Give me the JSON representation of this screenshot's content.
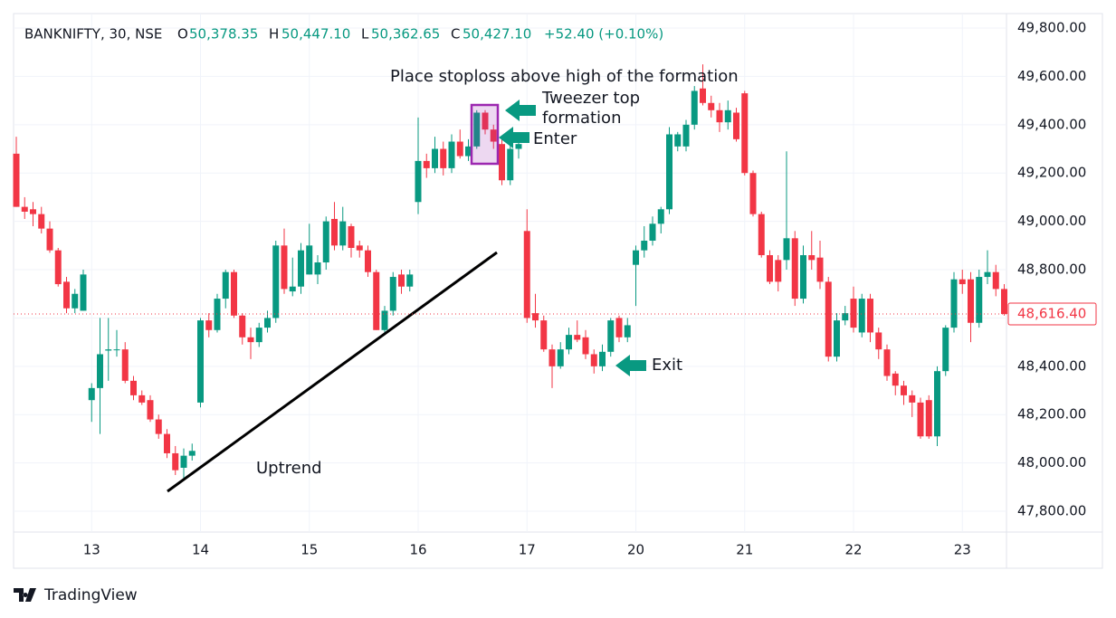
{
  "chart_data": {
    "type": "candlestick",
    "header": {
      "symbol": "BANKNIFTY, 30, NSE",
      "o_label": "O",
      "open": "50,378.35",
      "h_label": "H",
      "high": "50,447.10",
      "l_label": "L",
      "low": "50,362.65",
      "c_label": "C",
      "close": "50,427.10",
      "change": "+52.40 (+0.10%)"
    },
    "annotations": {
      "stoploss": "Place stoploss above high of the formation",
      "tweezer_1": "Tweezer top",
      "tweezer_2": "formation",
      "enter": "Enter",
      "exit": "Exit",
      "uptrend": "Uptrend"
    },
    "brand": "TradingView",
    "up_color": "#089981",
    "down_color": "#f23645",
    "categories": [
      null,
      null,
      null,
      null,
      null,
      null,
      null,
      null,
      null,
      "13",
      null,
      null,
      null,
      null,
      null,
      null,
      null,
      null,
      null,
      null,
      null,
      null,
      "14",
      null,
      null,
      null,
      null,
      null,
      null,
      null,
      null,
      null,
      null,
      null,
      null,
      "15",
      null,
      null,
      null,
      null,
      null,
      null,
      null,
      null,
      null,
      null,
      null,
      null,
      "16",
      null,
      null,
      null,
      null,
      null,
      null,
      null,
      null,
      null,
      null,
      null,
      null,
      "17",
      null,
      null,
      null,
      null,
      null,
      null,
      null,
      null,
      null,
      null,
      null,
      null,
      "20",
      null,
      null,
      null,
      null,
      null,
      null,
      null,
      null,
      null,
      null,
      null,
      null,
      "21",
      null,
      null,
      null,
      null,
      null,
      null,
      null,
      null,
      null,
      null,
      null,
      null,
      "22",
      null,
      null,
      null,
      null,
      null,
      null,
      null,
      null,
      null,
      null,
      null,
      null,
      "23",
      null,
      null,
      null,
      null,
      null
    ],
    "open": [
      49280,
      49060,
      49050,
      49030,
      48970,
      48880,
      48750,
      48640,
      48630,
      48260,
      48310,
      48465,
      48470,
      48470,
      48340,
      48280,
      48260,
      48180,
      48120,
      48040,
      47980,
      48030,
      48250,
      48590,
      48550,
      48680,
      48790,
      48610,
      48520,
      48500,
      48560,
      48600,
      48900,
      48710,
      48730,
      48780,
      48780,
      48830,
      49010,
      48900,
      48980,
      48900,
      48880,
      48790,
      48550,
      48630,
      48780,
      48730,
      49080,
      49250,
      49220,
      49300,
      49220,
      49330,
      49270,
      49310,
      49450,
      49380,
      49320,
      49170,
      49300,
      48960,
      48620,
      48590,
      48470,
      48400,
      48470,
      48530,
      48520,
      48450,
      48400,
      48460,
      48600,
      48520,
      48820,
      48880,
      48920,
      48990,
      49050,
      49310,
      49310,
      49400,
      49550,
      49490,
      49460,
      49410,
      49450,
      49530,
      49200,
      49030,
      48860,
      48840,
      48840,
      48930,
      48680,
      48860,
      48850,
      48750,
      48440,
      48590,
      48680,
      48540,
      48680,
      48540,
      48470,
      48370,
      48320,
      48280,
      48250,
      48260,
      48110,
      48380,
      48560,
      48760,
      48760,
      48580,
      48770,
      48790,
      48720
    ],
    "high": [
      49350,
      49100,
      49080,
      49060,
      49000,
      48890,
      48770,
      48720,
      48800,
      48330,
      48600,
      48600,
      48550,
      48500,
      48360,
      48300,
      48280,
      48200,
      48140,
      48070,
      48060,
      48080,
      48600,
      48620,
      48700,
      48800,
      48800,
      48620,
      48560,
      48580,
      48630,
      48920,
      48970,
      48850,
      48910,
      48990,
      48860,
      49020,
      49080,
      49060,
      48990,
      48920,
      48900,
      48800,
      48650,
      48790,
      48800,
      48800,
      49430,
      49280,
      49350,
      49330,
      49360,
      49380,
      49340,
      49460,
      49460,
      49400,
      49350,
      49320,
      49340,
      49050,
      48700,
      48610,
      48490,
      48500,
      48560,
      48590,
      48550,
      48470,
      48490,
      48600,
      48610,
      48600,
      48900,
      48980,
      49020,
      49060,
      49390,
      49370,
      49420,
      49560,
      49650,
      49520,
      49490,
      49500,
      49470,
      49540,
      49210,
      49040,
      48880,
      48860,
      49290,
      48960,
      48900,
      48960,
      48920,
      48770,
      48620,
      48650,
      48730,
      48700,
      48700,
      48560,
      48490,
      48380,
      48340,
      48300,
      48270,
      48280,
      48400,
      48570,
      48790,
      48800,
      48790,
      48800,
      48880,
      48820,
      48740
    ],
    "low": [
      49060,
      49010,
      48980,
      48950,
      48870,
      48730,
      48620,
      48620,
      48630,
      48170,
      48120,
      48340,
      48440,
      48330,
      48260,
      48240,
      48170,
      48100,
      48020,
      47950,
      47930,
      48010,
      48230,
      48520,
      48540,
      48640,
      48600,
      48490,
      48430,
      48480,
      48540,
      48580,
      48700,
      48690,
      48700,
      48780,
      48740,
      48800,
      48880,
      48880,
      48850,
      48850,
      48770,
      48550,
      48530,
      48610,
      48700,
      48710,
      49030,
      49180,
      49200,
      49190,
      49200,
      49260,
      49250,
      49300,
      49360,
      49300,
      49150,
      49150,
      49260,
      48580,
      48560,
      48460,
      48310,
      48390,
      48450,
      48500,
      48430,
      48370,
      48380,
      48440,
      48500,
      48500,
      48650,
      48850,
      48900,
      48950,
      49030,
      49290,
      49290,
      49380,
      49480,
      49430,
      49370,
      49380,
      49330,
      49190,
      49020,
      48850,
      48740,
      48710,
      48800,
      48650,
      48660,
      48800,
      48720,
      48420,
      48420,
      48570,
      48540,
      48520,
      48500,
      48430,
      48340,
      48280,
      48240,
      48190,
      48100,
      48100,
      48070,
      48360,
      48540,
      48700,
      48500,
      48560,
      48740,
      48690,
      48610
    ],
    "close": [
      49060,
      49040,
      49030,
      48970,
      48880,
      48740,
      48640,
      48700,
      48780,
      48310,
      48450,
      48470,
      48470,
      48340,
      48280,
      48250,
      48180,
      48120,
      48040,
      47970,
      48030,
      48050,
      48590,
      48550,
      48680,
      48790,
      48610,
      48520,
      48500,
      48560,
      48600,
      48900,
      48720,
      48730,
      48880,
      48900,
      48830,
      49000,
      48900,
      49000,
      48890,
      48880,
      48790,
      48550,
      48630,
      48770,
      48730,
      48780,
      49250,
      49220,
      49300,
      49220,
      49330,
      49270,
      49310,
      49450,
      49380,
      49330,
      49170,
      49300,
      49320,
      48600,
      48590,
      48470,
      48400,
      48470,
      48530,
      48510,
      48450,
      48400,
      48460,
      48590,
      48520,
      48570,
      48880,
      48920,
      48990,
      49050,
      49360,
      49360,
      49400,
      49540,
      49490,
      49460,
      49410,
      49460,
      49340,
      49200,
      49030,
      48860,
      48750,
      48750,
      48930,
      48680,
      48860,
      48840,
      48750,
      48440,
      48590,
      48620,
      48560,
      48680,
      48540,
      48470,
      48360,
      48320,
      48280,
      48250,
      48110,
      48110,
      48380,
      48560,
      48760,
      48740,
      48580,
      48770,
      48790,
      48720,
      48616.4
    ],
    "last_price": {
      "value": 48616.4,
      "label": "48,616.40"
    },
    "ylim": [
      47714,
      49860
    ],
    "yticks": [
      {
        "value": 47800,
        "label": "47,800.00"
      },
      {
        "value": 48000,
        "label": "48,000.00"
      },
      {
        "value": 48200,
        "label": "48,200.00"
      },
      {
        "value": 48400,
        "label": "48,400.00"
      },
      {
        "value": 48600,
        "label": "48,600.00"
      },
      {
        "value": 48800,
        "label": "48,800.00"
      },
      {
        "value": 49000,
        "label": "49,000.00"
      },
      {
        "value": 49200,
        "label": "49,200.00"
      },
      {
        "value": 49400,
        "label": "49,400.00"
      },
      {
        "value": 49600,
        "label": "49,600.00"
      },
      {
        "value": 49800,
        "label": "49,800.00"
      }
    ],
    "grid": true
  }
}
